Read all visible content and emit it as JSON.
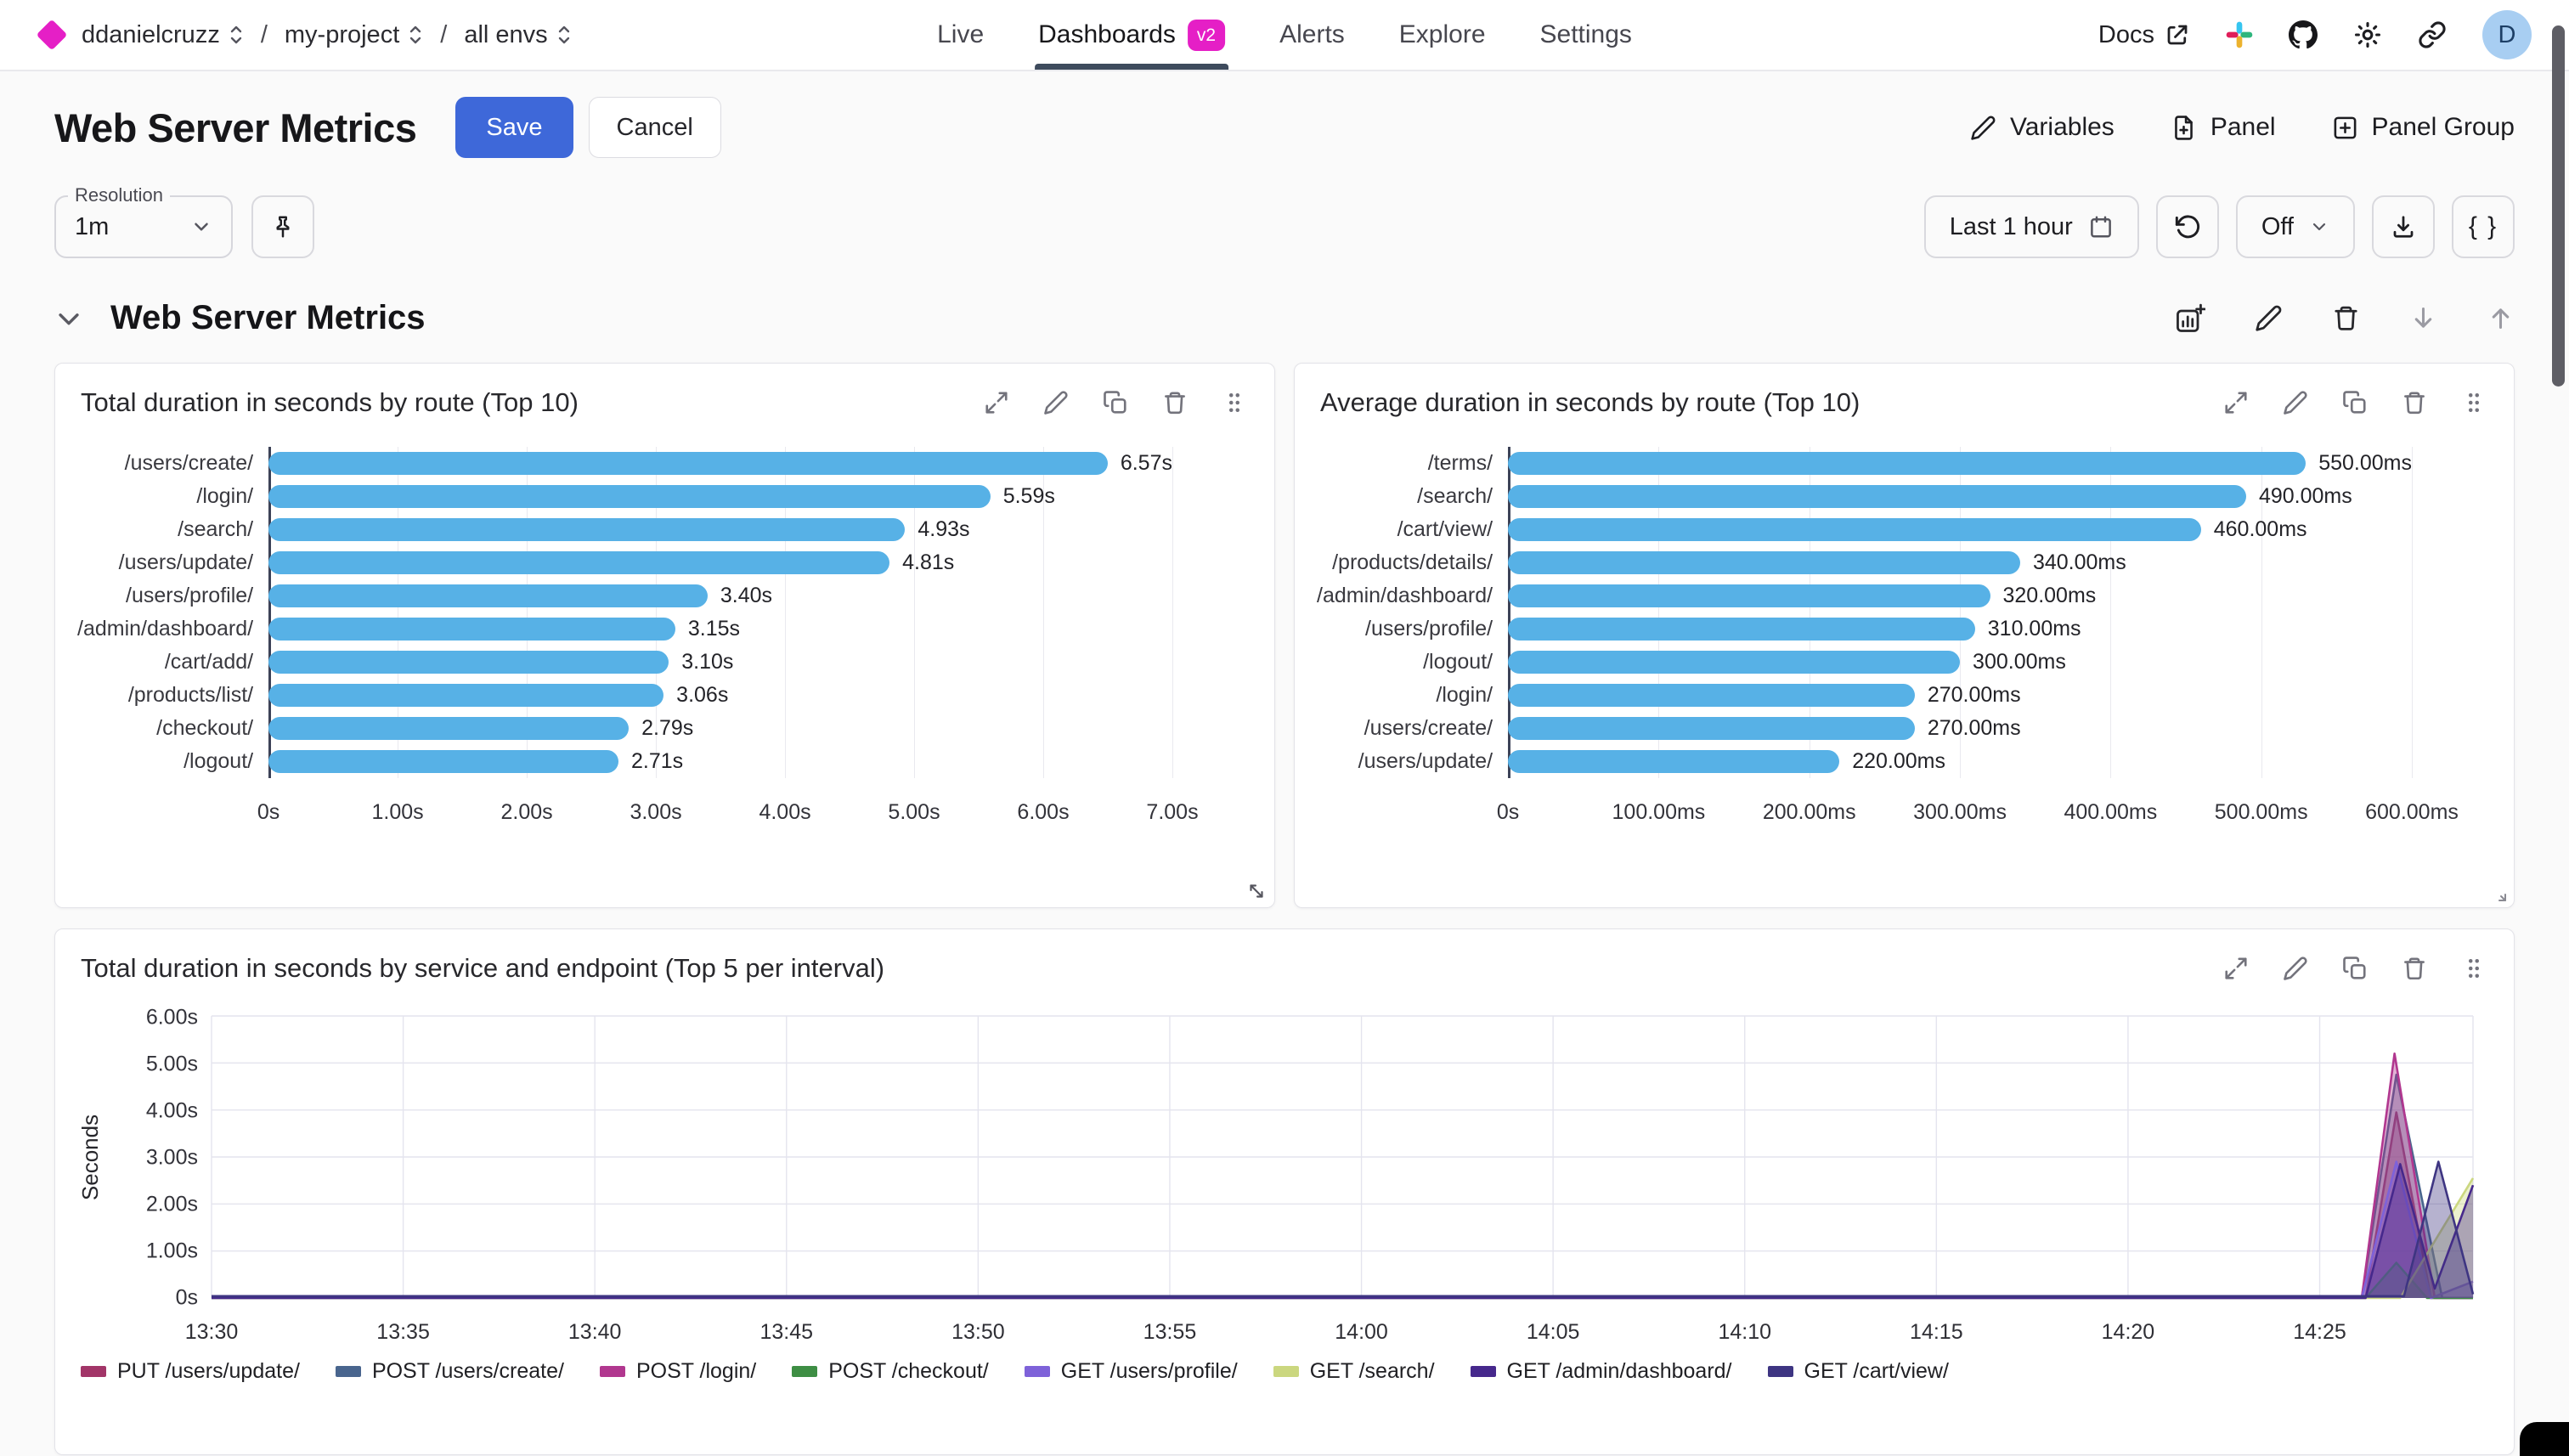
{
  "nav": {
    "breadcrumb": {
      "org": "ddanielcruzz",
      "project": "my-project",
      "env": "all envs",
      "sep": "/"
    },
    "tabs": [
      {
        "label": "Live",
        "active": false
      },
      {
        "label": "Dashboards",
        "badge": "v2",
        "active": true
      },
      {
        "label": "Alerts",
        "active": false
      },
      {
        "label": "Explore",
        "active": false
      },
      {
        "label": "Settings",
        "active": false
      }
    ],
    "docs_label": "Docs",
    "avatar_initial": "D"
  },
  "header": {
    "title": "Web Server Metrics",
    "save": "Save",
    "cancel": "Cancel",
    "variables": "Variables",
    "panel": "Panel",
    "panel_group": "Panel Group"
  },
  "toolbar": {
    "resolution_label": "Resolution",
    "resolution_value": "1m",
    "time_range": "Last 1 hour",
    "auto_refresh": "Off",
    "json_button": "{ }"
  },
  "section": {
    "title": "Web Server Metrics"
  },
  "chart_data": [
    {
      "type": "bar",
      "orientation": "horizontal",
      "title": "Total duration in seconds by route (Top 10)",
      "categories": [
        "/users/create/",
        "/login/",
        "/search/",
        "/users/update/",
        "/users/profile/",
        "/admin/dashboard/",
        "/cart/add/",
        "/products/list/",
        "/checkout/",
        "/logout/"
      ],
      "values": [
        6.57,
        5.59,
        4.93,
        4.81,
        3.4,
        3.15,
        3.1,
        3.06,
        2.79,
        2.71
      ],
      "value_labels": [
        "6.57s",
        "5.59s",
        "4.93s",
        "4.81s",
        "3.40s",
        "3.15s",
        "3.10s",
        "3.06s",
        "2.79s",
        "2.71s"
      ],
      "xticks": [
        "0s",
        "1.00s",
        "2.00s",
        "3.00s",
        "4.00s",
        "5.00s",
        "6.00s",
        "7.00s"
      ],
      "xmax": 7,
      "bar_color": "#57B1E6",
      "grid": true
    },
    {
      "type": "bar",
      "orientation": "horizontal",
      "title": "Average duration in seconds by route (Top 10)",
      "categories": [
        "/terms/",
        "/search/",
        "/cart/view/",
        "/products/details/",
        "/admin/dashboard/",
        "/users/profile/",
        "/logout/",
        "/login/",
        "/users/create/",
        "/users/update/"
      ],
      "values": [
        550,
        490,
        460,
        340,
        320,
        310,
        300,
        270,
        270,
        220
      ],
      "value_labels": [
        "550.00ms",
        "490.00ms",
        "460.00ms",
        "340.00ms",
        "320.00ms",
        "310.00ms",
        "300.00ms",
        "270.00ms",
        "270.00ms",
        "220.00ms"
      ],
      "xticks": [
        "0s",
        "100.00ms",
        "200.00ms",
        "300.00ms",
        "400.00ms",
        "500.00ms",
        "600.00ms"
      ],
      "xmax": 600,
      "bar_color": "#57B1E6",
      "grid": true
    },
    {
      "type": "area",
      "title": "Total duration in seconds by service and endpoint (Top 5 per interval)",
      "ylabel": "Seconds",
      "yticks": [
        "0s",
        "1.00s",
        "2.00s",
        "3.00s",
        "4.00s",
        "5.00s",
        "6.00s"
      ],
      "ymax": 6,
      "xticks": [
        "13:30",
        "13:35",
        "13:40",
        "13:45",
        "13:50",
        "13:55",
        "14:00",
        "14:05",
        "14:10",
        "14:15",
        "14:20",
        "14:25"
      ],
      "x_domain_minutes": [
        0,
        59
      ],
      "xtick_step_minutes": 5,
      "legend_position": "bottom",
      "grid": true,
      "series": [
        {
          "name": "PUT /users/update/",
          "color": "#A23568",
          "points": [
            [
              0,
              0
            ],
            [
              56.2,
              0
            ],
            [
              57.0,
              3.95
            ],
            [
              57.9,
              0
            ],
            [
              59,
              0
            ]
          ]
        },
        {
          "name": "POST /users/create/",
          "color": "#49658E",
          "points": [
            [
              0,
              0
            ],
            [
              56.1,
              0
            ],
            [
              57.0,
              4.75
            ],
            [
              58.2,
              0
            ],
            [
              59,
              0
            ]
          ]
        },
        {
          "name": "POST /login/",
          "color": "#B1378F",
          "points": [
            [
              0,
              0
            ],
            [
              56.1,
              0
            ],
            [
              56.95,
              5.2
            ],
            [
              58.0,
              0
            ],
            [
              59,
              0
            ]
          ]
        },
        {
          "name": "POST /checkout/",
          "color": "#3E8E44",
          "points": [
            [
              0,
              0
            ],
            [
              56.2,
              0
            ],
            [
              57.0,
              0.75
            ],
            [
              57.8,
              0
            ],
            [
              59,
              0
            ]
          ]
        },
        {
          "name": "GET /users/profile/",
          "color": "#7E62D9",
          "points": [
            [
              0,
              0
            ],
            [
              56.1,
              0
            ],
            [
              57.0,
              2.9
            ],
            [
              57.9,
              0
            ],
            [
              59,
              0.35
            ]
          ]
        },
        {
          "name": "GET /search/",
          "color": "#CBD77F",
          "points": [
            [
              0,
              0
            ],
            [
              57.1,
              0
            ],
            [
              59,
              2.55
            ]
          ]
        },
        {
          "name": "GET /admin/dashboard/",
          "color": "#46288C",
          "points": [
            [
              0,
              0
            ],
            [
              56.2,
              0
            ],
            [
              57.1,
              2.85
            ],
            [
              58.0,
              0.2
            ],
            [
              59,
              2.4
            ]
          ]
        },
        {
          "name": "GET /cart/view/",
          "color": "#3E3582",
          "points": [
            [
              0,
              0.04
            ],
            [
              57.2,
              0.04
            ],
            [
              58.1,
              2.9
            ],
            [
              59,
              0.08
            ]
          ]
        }
      ]
    }
  ],
  "colors": {
    "accent_blue": "#3E68D9",
    "bar_blue": "#57B1E6",
    "brand_magenta": "#E51FC6",
    "active_tab_underline": "#3E4B5D",
    "avatar_bg": "#A8CEF2"
  }
}
